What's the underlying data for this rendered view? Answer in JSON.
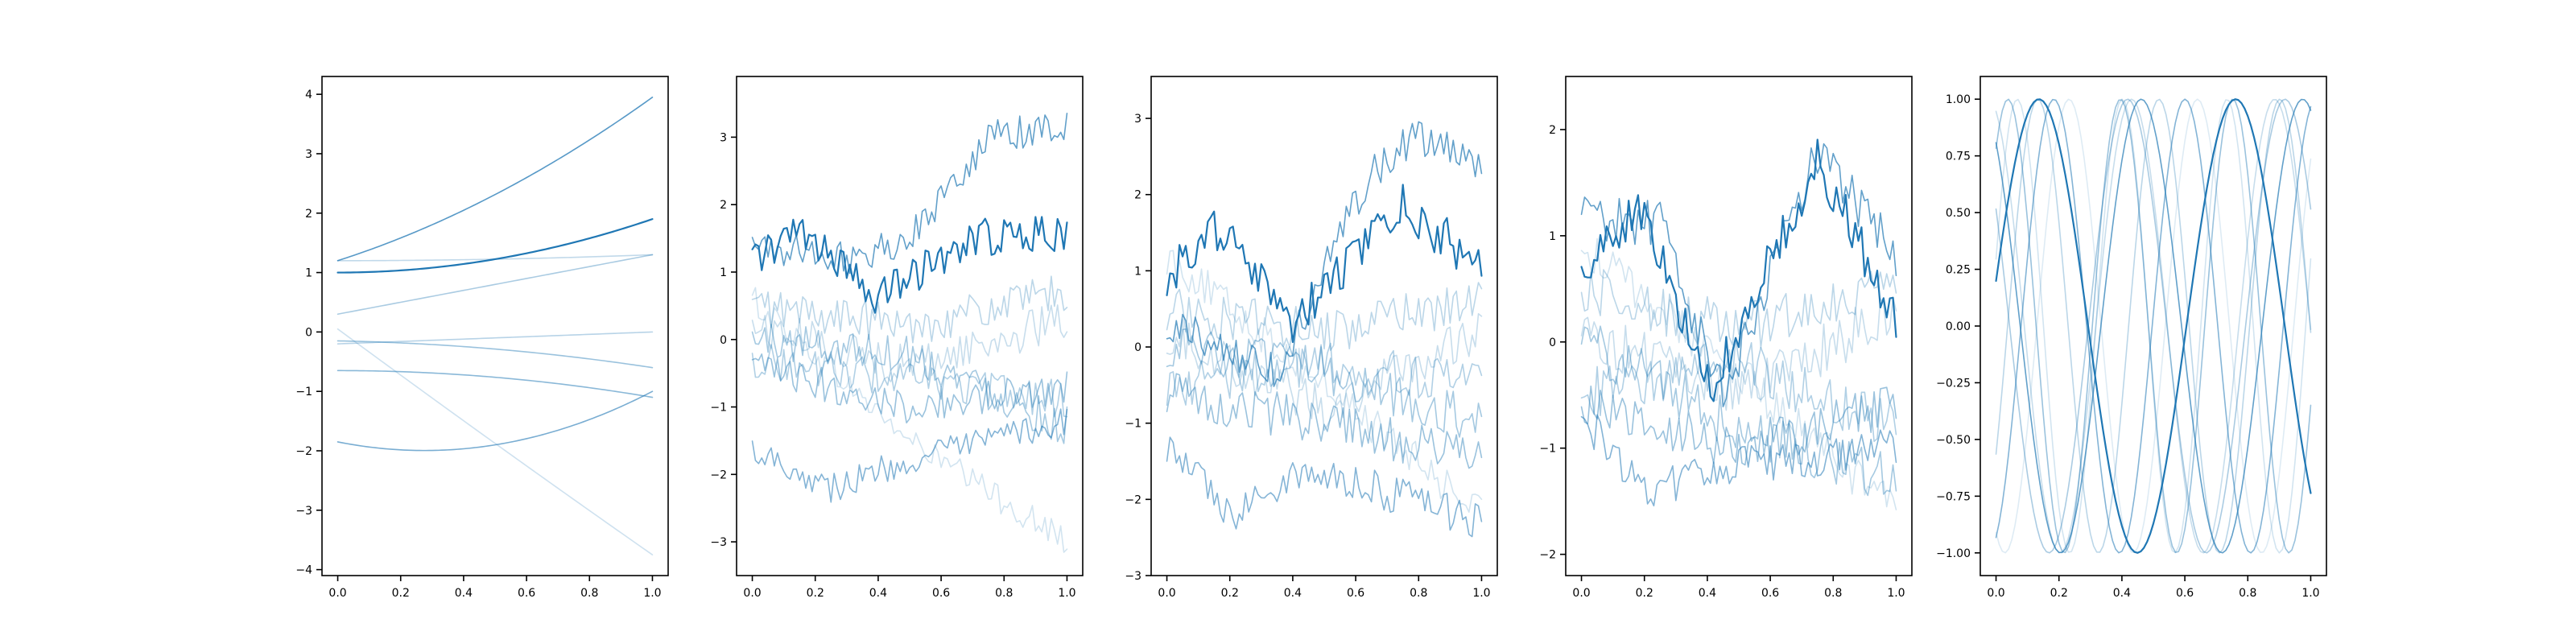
{
  "colors": {
    "base": "#1f77b4",
    "background": "#ffffff",
    "axes": "#000000"
  },
  "chart_data": [
    {
      "type": "line",
      "kind": "polynomial",
      "xlim": [
        -0.05,
        1.05
      ],
      "ylim": [
        -4.1,
        4.3
      ],
      "xticks": [
        "0.0",
        "0.2",
        "0.4",
        "0.6",
        "0.8",
        "1.0"
      ],
      "yticks": [
        "−4",
        "−3",
        "−2",
        "−1",
        "0",
        "1",
        "2",
        "3",
        "4"
      ],
      "grid": false,
      "series": [
        {
          "alpha": 0.22,
          "coeffs": [
            0.05,
            -3.9,
            0.1
          ],
          "y_at_x0": 0.05,
          "y_at_x1": -3.75
        },
        {
          "alpha": 0.28,
          "coeffs": [
            1.2,
            0.0,
            0.1
          ],
          "y_at_x0": 1.2,
          "y_at_x1": 1.3
        },
        {
          "alpha": 0.32,
          "coeffs": [
            -0.2,
            0.2,
            0.0
          ],
          "y_at_x0": -0.2,
          "y_at_x1": 0.0
        },
        {
          "alpha": 0.38,
          "coeffs": [
            0.3,
            1.0,
            0.0
          ],
          "y_at_x0": 0.3,
          "y_at_x1": 1.3
        },
        {
          "alpha": 0.45,
          "coeffs": [
            -0.15,
            -0.1,
            -0.35
          ],
          "y_at_x0": -0.15,
          "y_at_x1": -0.6
        },
        {
          "alpha": 0.52,
          "coeffs": [
            -0.65,
            0.0,
            -0.45
          ],
          "y_at_x0": -0.65,
          "y_at_x1": -1.1
        },
        {
          "alpha": 0.6,
          "coeffs": [
            -1.85,
            -1.05,
            1.9
          ],
          "y_at_x0": -1.85,
          "y_at_x1": -1.0
        },
        {
          "alpha": 0.75,
          "coeffs": [
            1.2,
            1.7,
            1.05
          ],
          "y_at_x0": 1.2,
          "y_at_x1": 3.95
        },
        {
          "alpha": 1.0,
          "coeffs": [
            1.0,
            0.0,
            0.9
          ],
          "y_at_x0": 1.0,
          "y_at_x1": 1.9
        }
      ]
    },
    {
      "type": "line",
      "kind": "noisy-walk",
      "xlim": [
        -0.05,
        1.05
      ],
      "ylim": [
        -3.5,
        3.9
      ],
      "xticks": [
        "0.0",
        "0.2",
        "0.4",
        "0.6",
        "0.8",
        "1.0"
      ],
      "yticks": [
        "−3",
        "−2",
        "−1",
        "0",
        "1",
        "2",
        "3"
      ],
      "grid": false,
      "series": [
        {
          "alpha": 0.2,
          "trend_x": [
            0,
            0.5,
            1
          ],
          "trend_y": [
            0.6,
            -1.5,
            -3.0
          ],
          "noise": 0.22
        },
        {
          "alpha": 0.25,
          "trend_x": [
            0,
            0.5,
            1
          ],
          "trend_y": [
            0.2,
            -0.4,
            0.3
          ],
          "noise": 0.3
        },
        {
          "alpha": 0.3,
          "trend_x": [
            0,
            0.5,
            1
          ],
          "trend_y": [
            0.5,
            0.2,
            0.7
          ],
          "noise": 0.3
        },
        {
          "alpha": 0.35,
          "trend_x": [
            0,
            0.5,
            1
          ],
          "trend_y": [
            -0.3,
            -0.6,
            -0.9
          ],
          "noise": 0.28
        },
        {
          "alpha": 0.4,
          "trend_x": [
            0,
            0.5,
            1
          ],
          "trend_y": [
            0.0,
            -0.2,
            -1.3
          ],
          "noise": 0.3
        },
        {
          "alpha": 0.45,
          "trend_x": [
            0,
            0.5,
            1
          ],
          "trend_y": [
            -0.4,
            -1.0,
            -0.7
          ],
          "noise": 0.25
        },
        {
          "alpha": 0.55,
          "trend_x": [
            0,
            0.25,
            0.5,
            1
          ],
          "trend_y": [
            -1.6,
            -2.2,
            -1.8,
            -1.2
          ],
          "noise": 0.22
        },
        {
          "alpha": 0.7,
          "trend_x": [
            0,
            0.3,
            0.5,
            0.75,
            1
          ],
          "trend_y": [
            1.4,
            1.2,
            1.5,
            3.0,
            3.2
          ],
          "noise": 0.25
        },
        {
          "alpha": 1.0,
          "trend_x": [
            0,
            0.15,
            0.4,
            0.7,
            1
          ],
          "trend_y": [
            1.2,
            1.6,
            0.6,
            1.5,
            1.6
          ],
          "noise": 0.28
        }
      ]
    },
    {
      "type": "line",
      "kind": "noisy-walk",
      "xlim": [
        -0.05,
        1.05
      ],
      "ylim": [
        -3.0,
        3.55
      ],
      "xticks": [
        "0.0",
        "0.2",
        "0.4",
        "0.6",
        "0.8",
        "1.0"
      ],
      "yticks": [
        "−3",
        "−2",
        "−1",
        "0",
        "1",
        "2",
        "3"
      ],
      "grid": false,
      "series": [
        {
          "alpha": 0.2,
          "trend_x": [
            0,
            0.5,
            1
          ],
          "trend_y": [
            1.2,
            -0.5,
            -2.2
          ],
          "noise": 0.25
        },
        {
          "alpha": 0.25,
          "trend_x": [
            0,
            0.5,
            1
          ],
          "trend_y": [
            0.2,
            -0.8,
            0.2
          ],
          "noise": 0.3
        },
        {
          "alpha": 0.3,
          "trend_x": [
            0,
            0.5,
            1
          ],
          "trend_y": [
            0.5,
            0.2,
            0.6
          ],
          "noise": 0.3
        },
        {
          "alpha": 0.35,
          "trend_x": [
            0,
            0.5,
            1
          ],
          "trend_y": [
            -0.5,
            -0.2,
            -0.5
          ],
          "noise": 0.3
        },
        {
          "alpha": 0.4,
          "trend_x": [
            0,
            0.5,
            1
          ],
          "trend_y": [
            0.0,
            -0.3,
            -1.0
          ],
          "noise": 0.3
        },
        {
          "alpha": 0.45,
          "trend_x": [
            0,
            0.5,
            1
          ],
          "trend_y": [
            -0.6,
            -1.0,
            -1.5
          ],
          "noise": 0.3
        },
        {
          "alpha": 0.55,
          "trend_x": [
            0,
            0.2,
            0.45,
            1
          ],
          "trend_y": [
            -1.3,
            -2.2,
            -1.6,
            -2.3
          ],
          "noise": 0.25
        },
        {
          "alpha": 0.7,
          "trend_x": [
            0,
            0.35,
            0.65,
            0.8,
            1
          ],
          "trend_y": [
            0.3,
            -0.3,
            2.3,
            2.8,
            2.3
          ],
          "noise": 0.25
        },
        {
          "alpha": 1.0,
          "trend_x": [
            0,
            0.15,
            0.4,
            0.75,
            1
          ],
          "trend_y": [
            0.9,
            1.6,
            0.3,
            1.9,
            1.0
          ],
          "noise": 0.3
        }
      ]
    },
    {
      "type": "line",
      "kind": "noisy-walk",
      "xlim": [
        -0.05,
        1.05
      ],
      "ylim": [
        -2.2,
        2.5
      ],
      "xticks": [
        "0.0",
        "0.2",
        "0.4",
        "0.6",
        "0.8",
        "1.0"
      ],
      "yticks": [
        "−2",
        "−1",
        "0",
        "1",
        "2"
      ],
      "grid": false,
      "series": [
        {
          "alpha": 0.2,
          "trend_x": [
            0,
            0.5,
            1
          ],
          "trend_y": [
            0.9,
            -0.3,
            -1.6
          ],
          "noise": 0.2
        },
        {
          "alpha": 0.25,
          "trend_x": [
            0,
            0.5,
            1
          ],
          "trend_y": [
            0.1,
            -0.5,
            0.3
          ],
          "noise": 0.25
        },
        {
          "alpha": 0.3,
          "trend_x": [
            0,
            0.5,
            1
          ],
          "trend_y": [
            0.5,
            0.1,
            0.5
          ],
          "noise": 0.25
        },
        {
          "alpha": 0.35,
          "trend_x": [
            0,
            0.5,
            1
          ],
          "trend_y": [
            -0.5,
            -0.2,
            -0.8
          ],
          "noise": 0.25
        },
        {
          "alpha": 0.4,
          "trend_x": [
            0,
            0.5,
            1
          ],
          "trend_y": [
            0.0,
            -0.8,
            -1.3
          ],
          "noise": 0.25
        },
        {
          "alpha": 0.45,
          "trend_x": [
            0,
            0.5,
            1
          ],
          "trend_y": [
            -0.6,
            -1.0,
            -0.6
          ],
          "noise": 0.22
        },
        {
          "alpha": 0.55,
          "trend_x": [
            0,
            0.2,
            0.45,
            1
          ],
          "trend_y": [
            -0.7,
            -1.4,
            -1.2,
            -1.0
          ],
          "noise": 0.2
        },
        {
          "alpha": 0.7,
          "trend_x": [
            0,
            0.25,
            0.45,
            0.75,
            1
          ],
          "trend_y": [
            1.2,
            1.1,
            -0.5,
            1.8,
            0.8
          ],
          "noise": 0.22
        },
        {
          "alpha": 1.0,
          "trend_x": [
            0,
            0.18,
            0.42,
            0.75,
            1
          ],
          "trend_y": [
            0.7,
            1.25,
            -0.4,
            1.7,
            0.25
          ],
          "noise": 0.22
        }
      ]
    },
    {
      "type": "line",
      "kind": "sinusoid",
      "xlim": [
        -0.05,
        1.05
      ],
      "ylim": [
        -1.1,
        1.1
      ],
      "xticks": [
        "0.0",
        "0.2",
        "0.4",
        "0.6",
        "0.8",
        "1.0"
      ],
      "yticks": [
        "−1.00",
        "−0.75",
        "−0.50",
        "−0.25",
        "0.00",
        "0.25",
        "0.50",
        "0.75",
        "1.00"
      ],
      "grid": false,
      "series": [
        {
          "alpha": 0.15,
          "freq": 2.45,
          "phase": -2.0
        },
        {
          "alpha": 0.2,
          "freq": 3.0,
          "phase": 0.3
        },
        {
          "alpha": 0.25,
          "freq": 2.2,
          "phase": 1.9
        },
        {
          "alpha": 0.3,
          "freq": 2.6,
          "phase": -0.6
        },
        {
          "alpha": 0.38,
          "freq": 2.0,
          "phase": 2.6
        },
        {
          "alpha": 0.45,
          "freq": 2.8,
          "phase": 0.9
        },
        {
          "alpha": 0.55,
          "freq": 2.4,
          "phase": -1.2
        },
        {
          "alpha": 0.7,
          "freq": 1.95,
          "phase": 2.2
        },
        {
          "alpha": 1.0,
          "freq": 1.6,
          "phase": 0.2
        }
      ]
    }
  ]
}
